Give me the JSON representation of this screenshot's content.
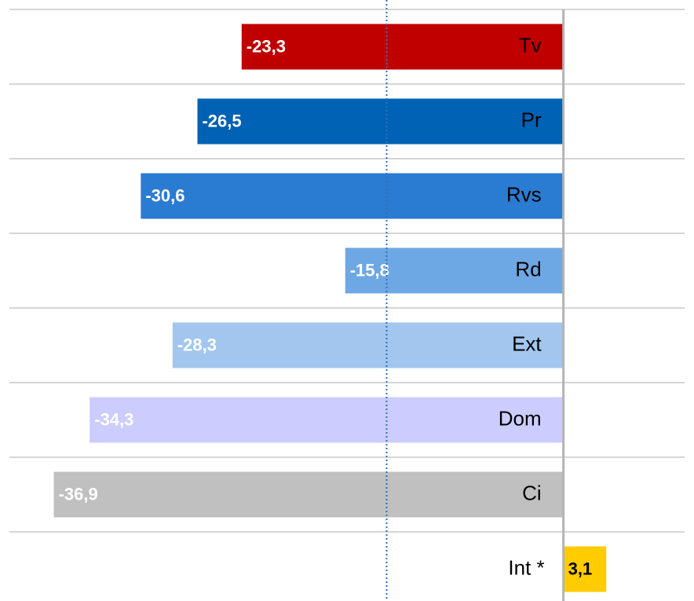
{
  "chart_data": {
    "type": "hbar",
    "categories": [
      "Tv",
      "Pr",
      "Rvs",
      "Rd",
      "Ext",
      "Dom",
      "Ci",
      "Int *"
    ],
    "values": [
      -23.3,
      -26.5,
      -30.6,
      -15.8,
      -28.3,
      -34.3,
      -36.9,
      3.1
    ],
    "value_labels": [
      "-23,3",
      "-26,5",
      "-30,6",
      "-15,8",
      "-28,3",
      "-34,3",
      "-36,9",
      "3,1"
    ],
    "colors": [
      "#c00000",
      "#0062b4",
      "#2a7bd2",
      "#6ea8e4",
      "#a2c6ee",
      "#ccccfe",
      "#c0c0c0",
      "#ffcc00"
    ],
    "value_label_colors": [
      "#ffffff",
      "#ffffff",
      "#ffffff",
      "#ffffff",
      "#ffffff",
      "#ffffff",
      "#ffffff",
      "#000000"
    ],
    "reference_line": -12.8,
    "xlim": [
      -40,
      9
    ]
  }
}
